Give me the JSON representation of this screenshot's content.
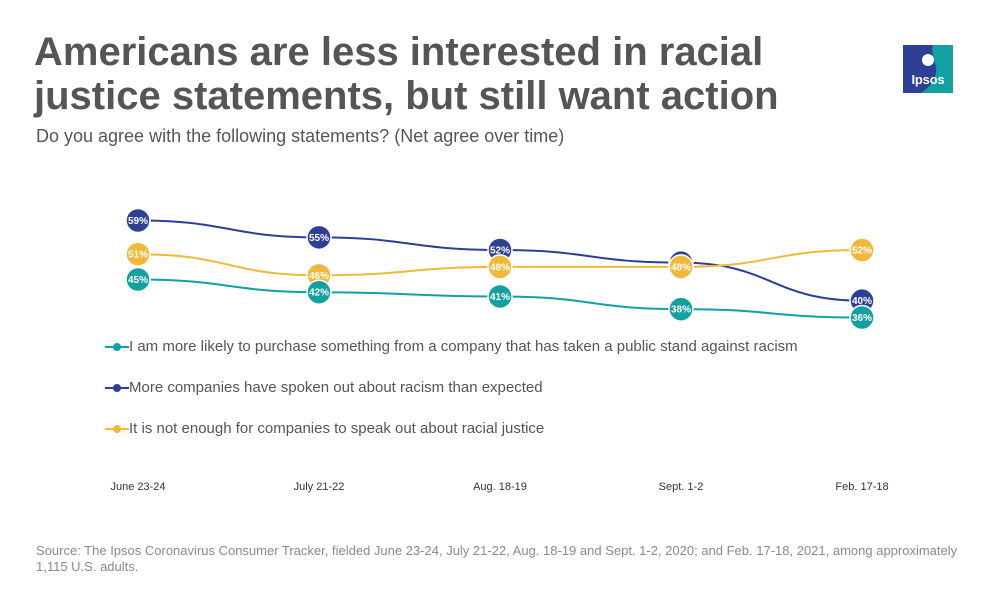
{
  "title": "Americans are less interested in racial justice statements, but still want action",
  "subtitle": "Do you agree with the following statements? (Net agree over time)",
  "logo": {
    "text": "Ipsos",
    "color": "#13a0a0",
    "accent": "#2e3f96"
  },
  "source": "Source: The Ipsos Coronavirus Consumer Tracker, fielded June 23-24, July 21-22, Aug. 18-19 and Sept. 1-2, 2020; and Feb. 17-18, 2021, among approximately 1,115 U.S. adults.",
  "chart_data": {
    "type": "line",
    "categories": [
      "June 23-24",
      "July 21-22",
      "Aug. 18-19",
      "Sept. 1-2",
      "Feb. 17-18"
    ],
    "ylim": [
      34,
      61
    ],
    "grid": false,
    "legend_position": "below-plot",
    "series": [
      {
        "name": "More companies have spoken out about racism than expected",
        "color": "#2e3f96",
        "values": [
          59,
          55,
          52,
          null,
          40
        ],
        "labels": [
          "59%",
          "55%",
          "52%",
          "",
          "40%"
        ]
      },
      {
        "name": "It is not enough for companies to speak out about racial justice",
        "color": "#f0b93a",
        "values": [
          51,
          46,
          48,
          48,
          52
        ],
        "labels": [
          "51%",
          "46%",
          "48%",
          "48%",
          "52%"
        ]
      },
      {
        "name": "I am more likely to purchase something from a company that has taken a public stand against racism",
        "color": "#13a0a0",
        "values": [
          45,
          42,
          41,
          38,
          36
        ],
        "labels": [
          "45%",
          "42%",
          "41%",
          "38%",
          "36%"
        ]
      }
    ]
  },
  "legend_order": [
    2,
    0,
    1
  ]
}
